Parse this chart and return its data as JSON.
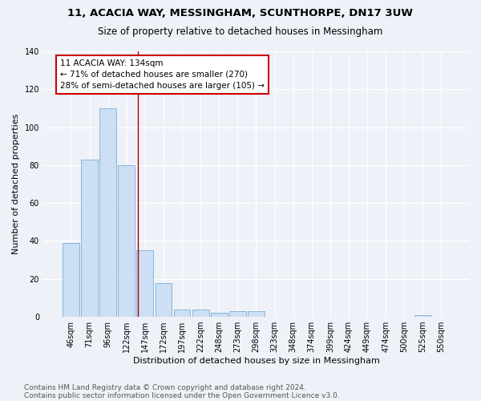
{
  "title": "11, ACACIA WAY, MESSINGHAM, SCUNTHORPE, DN17 3UW",
  "subtitle": "Size of property relative to detached houses in Messingham",
  "xlabel": "Distribution of detached houses by size in Messingham",
  "ylabel": "Number of detached properties",
  "footnote1": "Contains HM Land Registry data © Crown copyright and database right 2024.",
  "footnote2": "Contains public sector information licensed under the Open Government Licence v3.0.",
  "bar_labels": [
    "46sqm",
    "71sqm",
    "96sqm",
    "122sqm",
    "147sqm",
    "172sqm",
    "197sqm",
    "222sqm",
    "248sqm",
    "273sqm",
    "298sqm",
    "323sqm",
    "348sqm",
    "374sqm",
    "399sqm",
    "424sqm",
    "449sqm",
    "474sqm",
    "500sqm",
    "525sqm",
    "550sqm"
  ],
  "bar_values": [
    39,
    83,
    110,
    80,
    35,
    18,
    4,
    4,
    2,
    3,
    3,
    0,
    0,
    0,
    0,
    0,
    0,
    0,
    0,
    1,
    0
  ],
  "bar_color": "#ccdff5",
  "bar_edge_color": "#7aadd4",
  "vline_color": "#aa0000",
  "vline_x_index": 3.62,
  "annotation_text": "11 ACACIA WAY: 134sqm\n← 71% of detached houses are smaller (270)\n28% of semi-detached houses are larger (105) →",
  "annotation_box_color": "#ffffff",
  "annotation_border_color": "#cc0000",
  "ylim": [
    0,
    140
  ],
  "yticks": [
    0,
    20,
    40,
    60,
    80,
    100,
    120,
    140
  ],
  "background_color": "#eef2f8",
  "title_fontsize": 9.5,
  "subtitle_fontsize": 8.5,
  "axis_label_fontsize": 8,
  "tick_fontsize": 7,
  "annotation_fontsize": 7.5,
  "footnote_fontsize": 6.5
}
